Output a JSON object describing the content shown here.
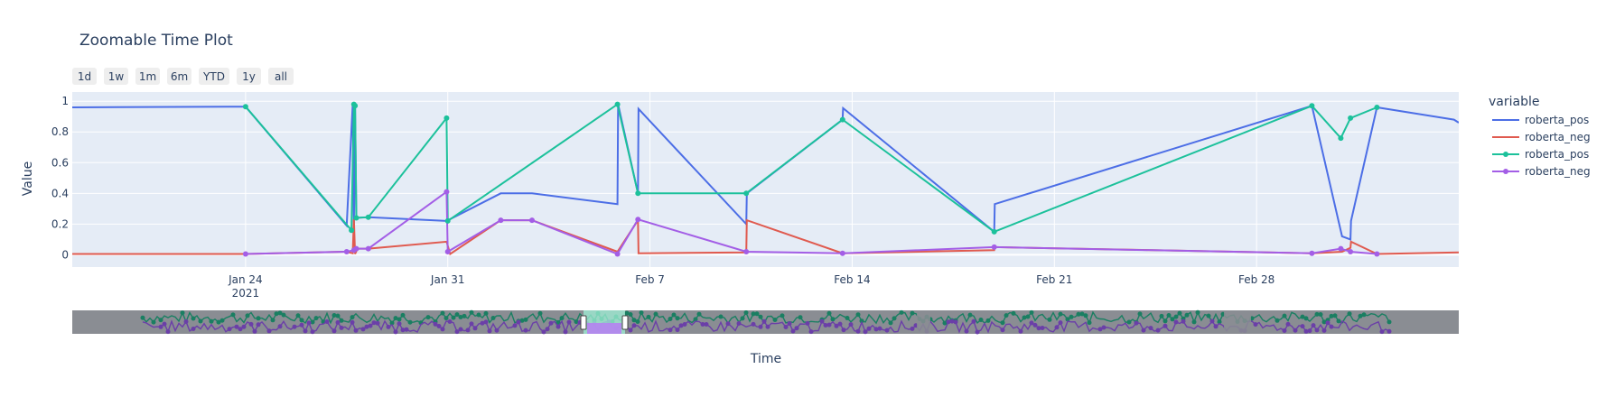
{
  "chart_data": {
    "type": "line",
    "title": "Zoomable Time Plot",
    "xlabel": "Time",
    "ylabel": "Value",
    "legend_title": "variable",
    "legend_position": "right",
    "grid": true,
    "xlim": [
      "2021-01-18",
      "2021-03-07"
    ],
    "ylim": [
      -0.08,
      1.06
    ],
    "x_ticks": [
      {
        "date": "2021-01-24",
        "label": "Jan 24",
        "sublabel": "2021"
      },
      {
        "date": "2021-01-31",
        "label": "Jan 31",
        "sublabel": ""
      },
      {
        "date": "2021-02-07",
        "label": "Feb 7",
        "sublabel": ""
      },
      {
        "date": "2021-02-14",
        "label": "Feb 14",
        "sublabel": ""
      },
      {
        "date": "2021-02-21",
        "label": "Feb 21",
        "sublabel": ""
      },
      {
        "date": "2021-02-28",
        "label": "Feb 28",
        "sublabel": ""
      }
    ],
    "y_ticks": [
      0,
      0.2,
      0.4,
      0.6,
      0.8,
      1
    ],
    "range_selector": [
      "1d",
      "1w",
      "1m",
      "6m",
      "YTD",
      "1y",
      "all"
    ],
    "series": [
      {
        "name": "roberta_pos",
        "color": "#4c6ee6",
        "mode": "lines",
        "x": [
          "2021-01-18T00:00",
          "2021-01-24T00:00",
          "2021-01-27T12:00",
          "2021-01-27T17:00",
          "2021-01-27T18:00",
          "2021-01-27T19:00",
          "2021-01-27T20:00",
          "2021-01-28T06:00",
          "2021-01-30T23:00",
          "2021-02-01T20:00",
          "2021-02-02T22:00",
          "2021-02-05T21:00",
          "2021-02-05T21:30",
          "2021-02-06T14:00",
          "2021-02-06T14:30",
          "2021-02-10T08:00",
          "2021-02-10T08:30",
          "2021-02-13T16:00",
          "2021-02-13T16:30",
          "2021-02-18T22:00",
          "2021-02-18T22:30",
          "2021-03-01T22:00",
          "2021-03-02T23:00",
          "2021-03-03T06:00",
          "2021-03-03T06:30",
          "2021-03-04T04:00",
          "2021-03-06T20:00",
          "2021-03-07T00:00"
        ],
        "y": [
          0.96,
          0.965,
          0.19,
          0.98,
          0.18,
          0.97,
          0.24,
          0.245,
          0.22,
          0.4,
          0.4,
          0.33,
          0.98,
          0.4,
          0.95,
          0.2,
          0.4,
          0.88,
          0.955,
          0.15,
          0.33,
          0.97,
          0.12,
          0.1,
          0.22,
          0.96,
          0.88,
          0.86
        ]
      },
      {
        "name": "roberta_neg",
        "color": "#e05a4f",
        "mode": "lines",
        "x": [
          "2021-01-18T00:00",
          "2021-01-24T00:00",
          "2021-01-27T12:00",
          "2021-01-27T17:00",
          "2021-01-27T18:00",
          "2021-01-27T19:00",
          "2021-01-27T21:00",
          "2021-01-28T06:00",
          "2021-01-30T23:00",
          "2021-01-31T02:00",
          "2021-02-01T20:00",
          "2021-02-02T22:00",
          "2021-02-05T21:00",
          "2021-02-06T14:00",
          "2021-02-06T14:30",
          "2021-02-10T08:00",
          "2021-02-10T08:30",
          "2021-02-13T16:00",
          "2021-02-18T22:00",
          "2021-02-18T22:30",
          "2021-03-01T22:00",
          "2021-03-02T23:00",
          "2021-03-03T06:00",
          "2021-03-03T06:30",
          "2021-03-04T04:00",
          "2021-03-07T00:00"
        ],
        "y": [
          0.005,
          0.005,
          0.02,
          0.01,
          0.23,
          0.005,
          0.04,
          0.04,
          0.085,
          0.005,
          0.225,
          0.225,
          0.02,
          0.225,
          0.01,
          0.015,
          0.225,
          0.01,
          0.03,
          0.05,
          0.01,
          0.02,
          0.045,
          0.085,
          0.005,
          0.015
        ]
      },
      {
        "name": "roberta_pos",
        "color": "#1cc19b",
        "mode": "lines+markers",
        "x": [
          "2021-01-24T00:00",
          "2021-01-27T16:00",
          "2021-01-27T18:00",
          "2021-01-27T19:00",
          "2021-01-27T20:00",
          "2021-01-28T06:00",
          "2021-01-30T23:00",
          "2021-01-31T00:00",
          "2021-02-05T21:00",
          "2021-02-06T14:00",
          "2021-02-10T08:00",
          "2021-02-13T16:00",
          "2021-02-18T22:00",
          "2021-03-01T22:00",
          "2021-03-02T22:00",
          "2021-03-03T06:00",
          "2021-03-04T04:00"
        ],
        "y": [
          0.965,
          0.16,
          0.98,
          0.97,
          0.24,
          0.245,
          0.89,
          0.22,
          0.98,
          0.4,
          0.4,
          0.88,
          0.15,
          0.97,
          0.76,
          0.89,
          0.96
        ]
      },
      {
        "name": "roberta_neg",
        "color": "#a35ee6",
        "mode": "lines+markers",
        "x": [
          "2021-01-24T00:00",
          "2021-01-27T12:00",
          "2021-01-27T18:00",
          "2021-01-27T20:00",
          "2021-01-28T06:00",
          "2021-01-30T23:00",
          "2021-01-31T00:00",
          "2021-02-01T20:00",
          "2021-02-02T22:00",
          "2021-02-05T21:00",
          "2021-02-06T14:00",
          "2021-02-10T08:00",
          "2021-02-13T16:00",
          "2021-02-18T22:00",
          "2021-03-01T22:00",
          "2021-03-02T22:00",
          "2021-03-03T06:00",
          "2021-03-04T04:00"
        ],
        "y": [
          0.005,
          0.02,
          0.03,
          0.04,
          0.04,
          0.41,
          0.02,
          0.225,
          0.225,
          0.005,
          0.23,
          0.02,
          0.01,
          0.05,
          0.01,
          0.04,
          0.02,
          0.005
        ]
      }
    ]
  }
}
